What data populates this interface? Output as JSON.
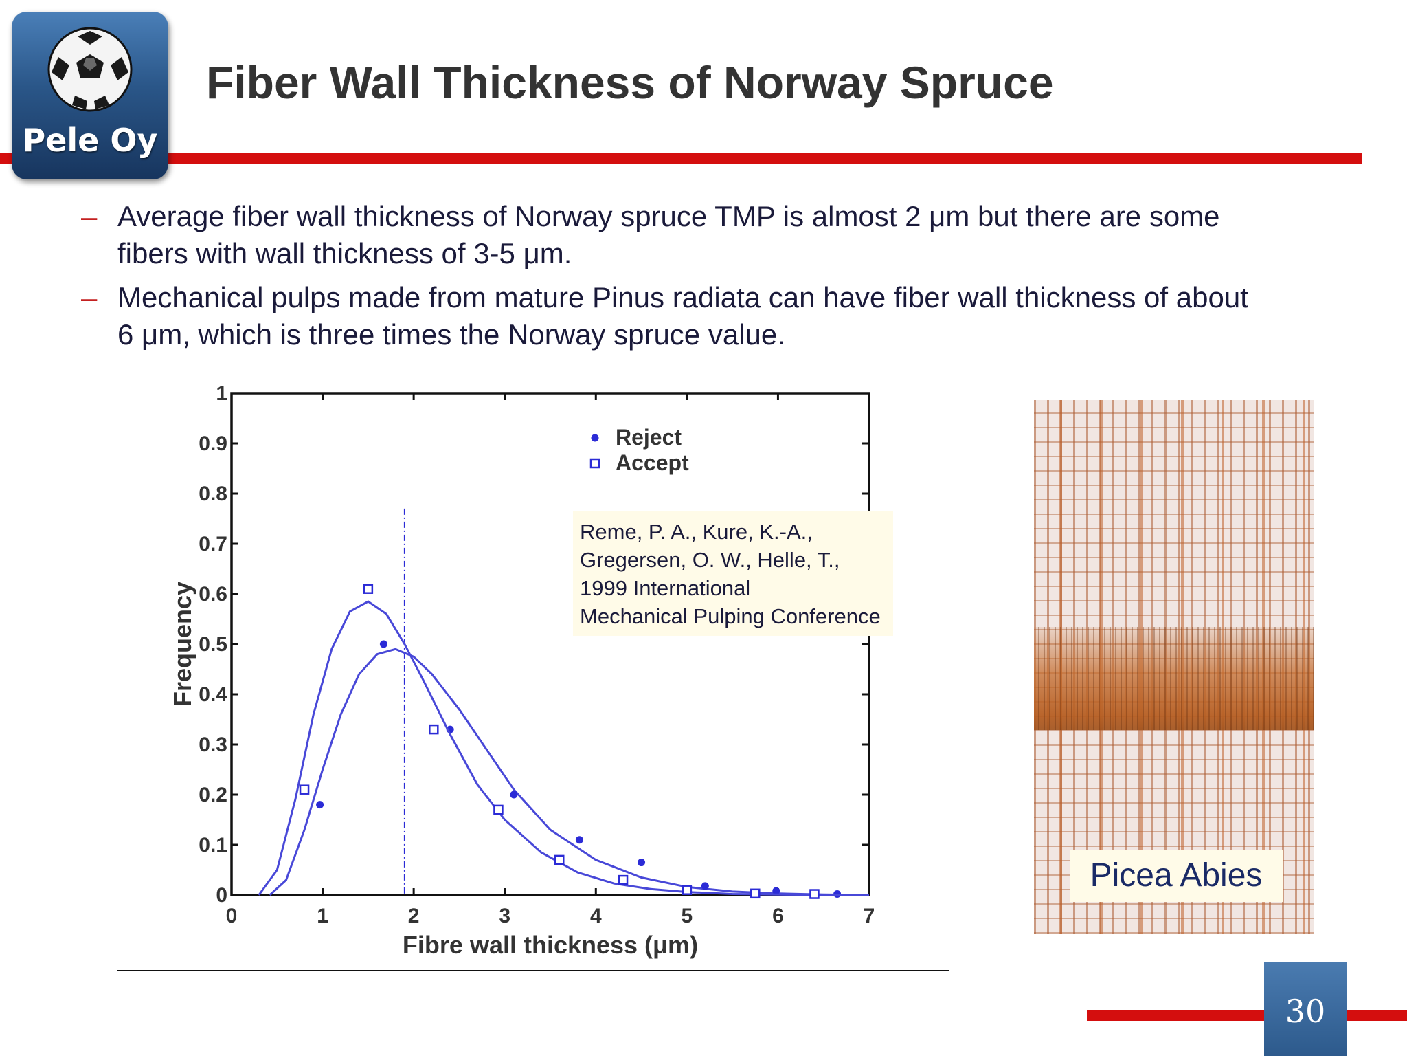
{
  "logo": {
    "text": "Pele Oy"
  },
  "title": "Fiber Wall Thickness of Norway Spruce",
  "bullets": [
    "Average fiber wall thickness of Norway spruce TMP is almost 2 μm but there are some fibers with wall thickness of 3-5 μm.",
    "Mechanical pulps made from mature Pinus radiata can have fiber wall thickness of about 6 μm, which is three times the Norway spruce value."
  ],
  "chart_data": {
    "type": "scatter",
    "xlabel": "Fibre wall thickness (μm)",
    "ylabel": "Frequency",
    "xlim": [
      0,
      7
    ],
    "ylim": [
      0,
      1
    ],
    "xticks": [
      "0",
      "1",
      "2",
      "3",
      "4",
      "5",
      "6",
      "7"
    ],
    "yticks": [
      "0",
      "0.1",
      "0.2",
      "0.3",
      "0.4",
      "0.5",
      "0.6",
      "0.7",
      "0.8",
      "0.9",
      "1"
    ],
    "legend_position": "top-right",
    "reference_line_x": 1.9,
    "series": [
      {
        "name": "Reject",
        "marker": "filled-circle",
        "color": "#2b2bd6",
        "points": [
          [
            0.97,
            0.18
          ],
          [
            1.67,
            0.5
          ],
          [
            2.4,
            0.33
          ],
          [
            3.1,
            0.2
          ],
          [
            3.82,
            0.11
          ],
          [
            4.5,
            0.065
          ],
          [
            5.2,
            0.018
          ],
          [
            5.98,
            0.008
          ],
          [
            6.65,
            0.002
          ]
        ],
        "fit_curve": [
          [
            0.42,
            0
          ],
          [
            0.6,
            0.03
          ],
          [
            0.8,
            0.13
          ],
          [
            1.0,
            0.25
          ],
          [
            1.2,
            0.36
          ],
          [
            1.4,
            0.44
          ],
          [
            1.6,
            0.48
          ],
          [
            1.8,
            0.49
          ],
          [
            2.0,
            0.475
          ],
          [
            2.2,
            0.44
          ],
          [
            2.5,
            0.37
          ],
          [
            2.8,
            0.29
          ],
          [
            3.1,
            0.21
          ],
          [
            3.5,
            0.13
          ],
          [
            4.0,
            0.07
          ],
          [
            4.5,
            0.035
          ],
          [
            5.0,
            0.016
          ],
          [
            5.5,
            0.007
          ],
          [
            6.0,
            0.003
          ],
          [
            6.5,
            0.001
          ],
          [
            7.0,
            0.0
          ]
        ]
      },
      {
        "name": "Accept",
        "marker": "open-square",
        "color": "#2b2bd6",
        "points": [
          [
            0.8,
            0.21
          ],
          [
            1.5,
            0.61
          ],
          [
            2.22,
            0.33
          ],
          [
            2.93,
            0.17
          ],
          [
            3.6,
            0.07
          ],
          [
            4.3,
            0.03
          ],
          [
            5.0,
            0.01
          ],
          [
            5.75,
            0.003
          ],
          [
            6.4,
            0.002
          ]
        ],
        "fit_curve": [
          [
            0.3,
            0
          ],
          [
            0.5,
            0.05
          ],
          [
            0.7,
            0.19
          ],
          [
            0.9,
            0.36
          ],
          [
            1.1,
            0.49
          ],
          [
            1.3,
            0.565
          ],
          [
            1.5,
            0.585
          ],
          [
            1.7,
            0.56
          ],
          [
            1.9,
            0.5
          ],
          [
            2.1,
            0.43
          ],
          [
            2.4,
            0.32
          ],
          [
            2.7,
            0.22
          ],
          [
            3.0,
            0.15
          ],
          [
            3.4,
            0.085
          ],
          [
            3.8,
            0.045
          ],
          [
            4.2,
            0.023
          ],
          [
            4.6,
            0.012
          ],
          [
            5.0,
            0.006
          ],
          [
            5.5,
            0.002
          ],
          [
            6.0,
            0.001
          ],
          [
            7.0,
            0.0
          ]
        ]
      }
    ],
    "annotation": [
      "Reme, P. A., Kure, K.-A.,",
      "Gregersen, O. W., Helle, T.,",
      "1999 International",
      " Mechanical Pulping Conference"
    ]
  },
  "photo": {
    "label": "Picea Abies"
  },
  "page_number": "30"
}
